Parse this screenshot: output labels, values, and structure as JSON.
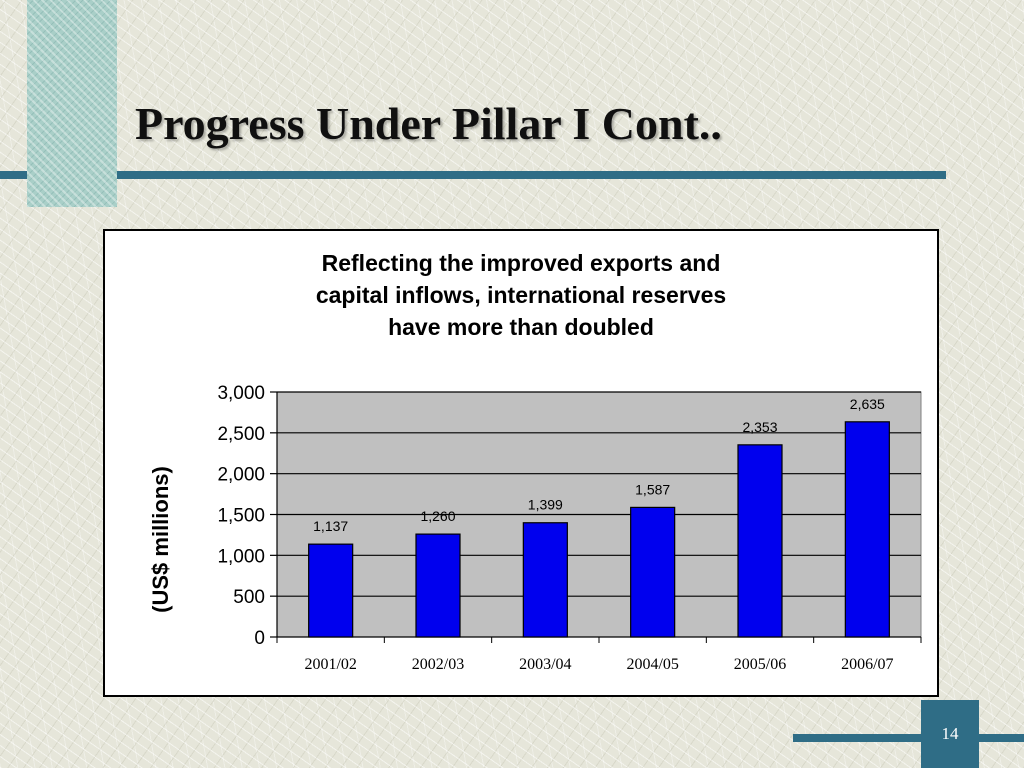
{
  "slide": {
    "title": "Progress Under Pillar I Cont..",
    "page_number": "14"
  },
  "theme": {
    "accent_color": "#2f6d86",
    "bar_color": "#0000ee",
    "plot_bg": "#c0c0c0"
  },
  "chart_data": {
    "type": "bar",
    "title": "Reflecting the improved exports and capital inflows, international reserves have more than doubled",
    "title_lines": [
      "Reflecting the improved exports and",
      "capital inflows, international reserves",
      "have more than doubled"
    ],
    "categories": [
      "2001/02",
      "2002/03",
      "2003/04",
      "2004/05",
      "2005/06",
      "2006/07"
    ],
    "values": [
      1137,
      1260,
      1399,
      1587,
      2353,
      2635
    ],
    "value_labels": [
      "1,137",
      "1,260",
      "1,399",
      "1,587",
      "2,353",
      "2,635"
    ],
    "xlabel": "",
    "ylabel": "(US$ millions)",
    "ylim": [
      0,
      3000
    ],
    "yticks": [
      0,
      500,
      1000,
      1500,
      2000,
      2500,
      3000
    ],
    "ytick_labels": [
      "0",
      "500",
      "1,000",
      "1,500",
      "2,000",
      "2,500",
      "3,000"
    ],
    "grid": true,
    "legend": "none"
  }
}
